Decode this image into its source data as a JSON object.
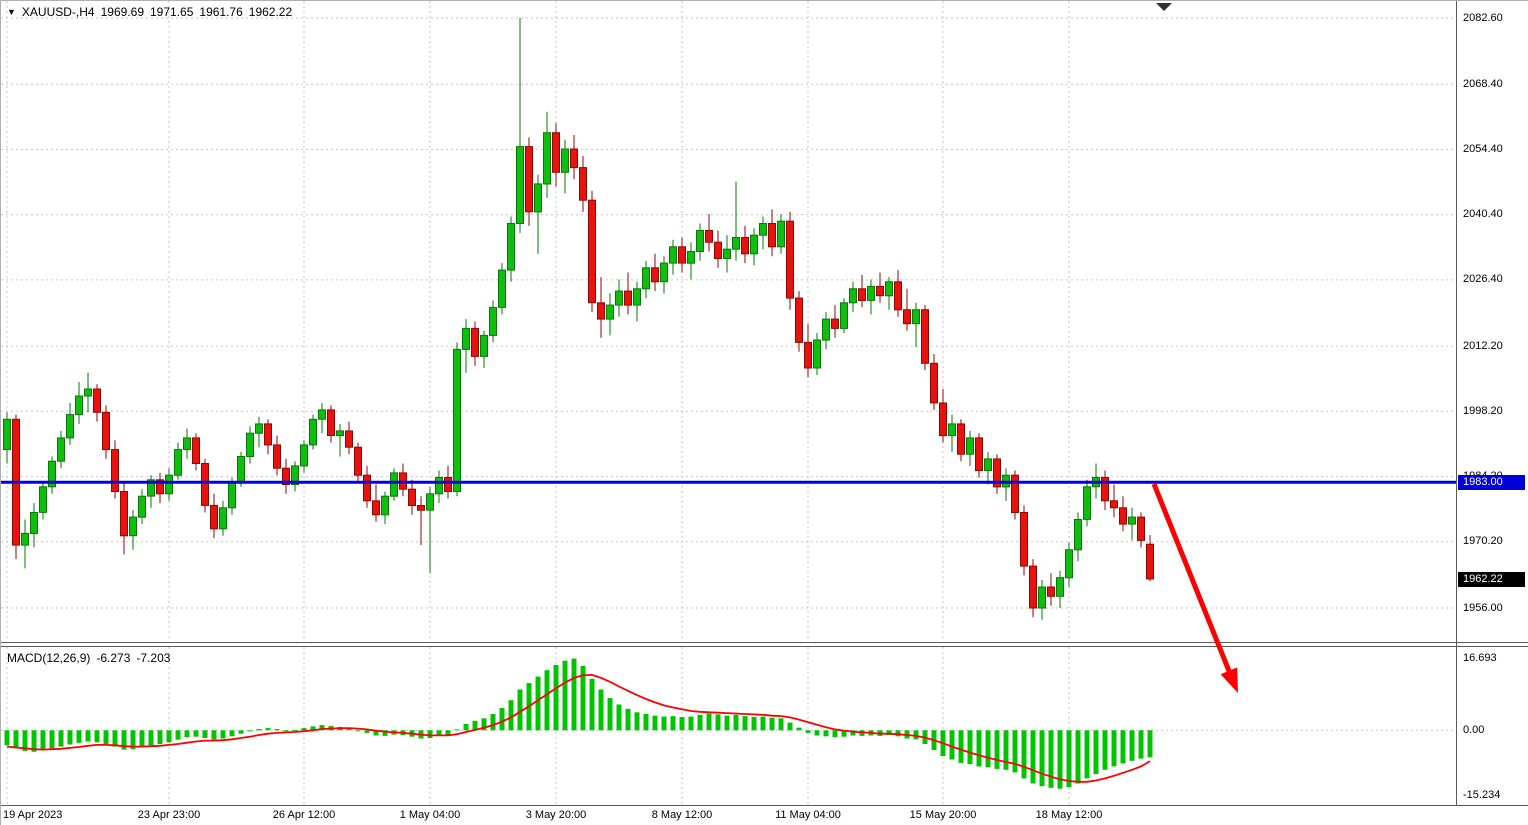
{
  "header": {
    "dropdown_icon": "▼",
    "symbol": "XAUUSD-,H4",
    "open": "1969.69",
    "high": "1971.65",
    "low": "1961.76",
    "close": "1962.22"
  },
  "indicator": {
    "name": "MACD(12,26,9)",
    "main_value": "-6.273",
    "signal_value": "-7.203"
  },
  "price_axis": {
    "labels": [
      {
        "label": "2082.60",
        "value": 2082.6
      },
      {
        "label": "2068.40",
        "value": 2068.4
      },
      {
        "label": "2054.40",
        "value": 2054.4
      },
      {
        "label": "2040.40",
        "value": 2040.4
      },
      {
        "label": "2026.40",
        "value": 2026.4
      },
      {
        "label": "2012.20",
        "value": 2012.2
      },
      {
        "label": "1998.20",
        "value": 1998.2
      },
      {
        "label": "1984.20",
        "value": 1984.2
      },
      {
        "label": "1970.20",
        "value": 1970.2
      },
      {
        "label": "1956.00",
        "value": 1956.0
      }
    ],
    "hline_tag": "1983.00",
    "last_tag": "1962.22"
  },
  "macd_axis": {
    "labels": [
      {
        "label": "16.693",
        "value": 16.693
      },
      {
        "label": "0.00",
        "value": 0
      },
      {
        "label": "-15.234",
        "value": -15.234
      }
    ]
  },
  "time_axis": {
    "labels": [
      {
        "label": "19 Apr 2023",
        "index": 0
      },
      {
        "label": "23 Apr 23:00",
        "index": 18
      },
      {
        "label": "26 Apr 12:00",
        "index": 33
      },
      {
        "label": "1 May 04:00",
        "index": 47
      },
      {
        "label": "3 May 20:00",
        "index": 61
      },
      {
        "label": "8 May 12:00",
        "index": 75
      },
      {
        "label": "11 May 04:00",
        "index": 89
      },
      {
        "label": "15 May 20:00",
        "index": 104
      },
      {
        "label": "18 May 12:00",
        "index": 118
      }
    ]
  },
  "chart_data": {
    "type": "candlestick",
    "symbol": "XAUUSD-",
    "timeframe": "H4",
    "title": "XAUUSD- H4 with MACD(12,26,9)",
    "current_candle": {
      "open": 1969.69,
      "high": 1971.65,
      "low": 1961.76,
      "close": 1962.22
    },
    "hline": {
      "price": 1983.0
    },
    "price_scale": {
      "top": 2086.25,
      "bottom": 1948.92
    },
    "macd_scale": {
      "top": 19.4,
      "bottom": -17.4
    },
    "grid_prices": [
      2082.6,
      2068.4,
      2054.4,
      2040.4,
      2026.4,
      2012.2,
      1998.2,
      1984.2,
      1970.2,
      1956.0
    ],
    "candles": [
      [
        1990.0,
        1998.0,
        1987.0,
        1996.5
      ],
      [
        1996.5,
        1997.5,
        1966.5,
        1969.5
      ],
      [
        1969.5,
        1975.0,
        1964.5,
        1972.0
      ],
      [
        1972.0,
        1978.5,
        1969.0,
        1976.5
      ],
      [
        1976.5,
        1983.0,
        1975.0,
        1982.0
      ],
      [
        1982.0,
        1988.5,
        1980.5,
        1987.5
      ],
      [
        1987.5,
        1994.0,
        1986.0,
        1992.5
      ],
      [
        1992.5,
        2000.0,
        1991.0,
        1997.5
      ],
      [
        1997.5,
        2004.5,
        1995.5,
        2001.5
      ],
      [
        2001.5,
        2006.5,
        1998.0,
        2003.0
      ],
      [
        2003.0,
        2004.0,
        1996.0,
        1998.0
      ],
      [
        1998.0,
        1999.5,
        1988.0,
        1990.0
      ],
      [
        1990.0,
        1992.0,
        1979.5,
        1981.0
      ],
      [
        1981.0,
        1983.0,
        1967.5,
        1971.5
      ],
      [
        1971.5,
        1977.0,
        1968.5,
        1975.5
      ],
      [
        1975.5,
        1981.5,
        1974.0,
        1980.0
      ],
      [
        1980.0,
        1984.5,
        1977.5,
        1983.5
      ],
      [
        1983.5,
        1985.0,
        1978.5,
        1980.5
      ],
      [
        1980.5,
        1986.0,
        1979.0,
        1984.5
      ],
      [
        1984.5,
        1991.5,
        1983.5,
        1990.0
      ],
      [
        1990.0,
        1994.5,
        1988.0,
        1992.5
      ],
      [
        1992.5,
        1993.5,
        1985.5,
        1987.0
      ],
      [
        1987.0,
        1988.0,
        1976.5,
        1978.0
      ],
      [
        1978.0,
        1980.5,
        1971.0,
        1973.0
      ],
      [
        1973.0,
        1979.0,
        1971.5,
        1977.5
      ],
      [
        1977.5,
        1984.0,
        1976.0,
        1983.0
      ],
      [
        1983.0,
        1989.5,
        1982.0,
        1988.5
      ],
      [
        1988.5,
        1995.0,
        1987.0,
        1993.5
      ],
      [
        1993.5,
        1997.0,
        1990.5,
        1995.5
      ],
      [
        1995.5,
        1996.5,
        1989.0,
        1991.0
      ],
      [
        1991.0,
        1993.0,
        1984.5,
        1986.0
      ],
      [
        1986.0,
        1988.0,
        1980.5,
        1982.5
      ],
      [
        1982.5,
        1987.5,
        1981.0,
        1986.5
      ],
      [
        1986.5,
        1992.0,
        1985.0,
        1991.0
      ],
      [
        1991.0,
        1997.5,
        1990.0,
        1996.5
      ],
      [
        1996.5,
        2000.0,
        1993.5,
        1998.5
      ],
      [
        1998.5,
        1999.5,
        1991.5,
        1993.0
      ],
      [
        1993.0,
        1995.5,
        1988.5,
        1994.0
      ],
      [
        1994.0,
        1996.0,
        1989.0,
        1990.5
      ],
      [
        1990.5,
        1991.5,
        1983.0,
        1984.5
      ],
      [
        1984.5,
        1986.5,
        1977.5,
        1979.0
      ],
      [
        1979.0,
        1982.5,
        1974.5,
        1976.0
      ],
      [
        1976.0,
        1981.0,
        1974.0,
        1980.0
      ],
      [
        1980.0,
        1986.0,
        1979.0,
        1985.0
      ],
      [
        1985.0,
        1987.0,
        1980.0,
        1981.5
      ],
      [
        1981.5,
        1983.5,
        1976.0,
        1978.0
      ],
      [
        1978.0,
        1980.0,
        1969.5,
        1977.0
      ],
      [
        1977.0,
        1982.0,
        1963.5,
        1980.5
      ],
      [
        1980.5,
        1985.5,
        1978.5,
        1984.0
      ],
      [
        1984.0,
        1986.5,
        1979.5,
        1981.0
      ],
      [
        1981.0,
        2013.0,
        1980.0,
        2011.5
      ],
      [
        2011.5,
        2018.0,
        2006.5,
        2016.0
      ],
      [
        2016.0,
        2017.5,
        2008.0,
        2010.0
      ],
      [
        2010.0,
        2015.5,
        2007.5,
        2014.5
      ],
      [
        2014.5,
        2022.0,
        2013.0,
        2020.5
      ],
      [
        2020.5,
        2030.0,
        2019.0,
        2028.5
      ],
      [
        2028.5,
        2040.0,
        2026.0,
        2038.5
      ],
      [
        2038.5,
        2082.6,
        2036.5,
        2055.0
      ],
      [
        2055.0,
        2057.0,
        2038.0,
        2041.0
      ],
      [
        2041.0,
        2049.0,
        2032.0,
        2047.0
      ],
      [
        2047.0,
        2062.5,
        2044.0,
        2058.0
      ],
      [
        2058.0,
        2060.0,
        2046.5,
        2049.5
      ],
      [
        2049.5,
        2056.5,
        2045.0,
        2054.5
      ],
      [
        2054.5,
        2057.5,
        2048.0,
        2050.5
      ],
      [
        2050.5,
        2053.0,
        2041.0,
        2043.5
      ],
      [
        2043.5,
        2045.5,
        2019.5,
        2021.5
      ],
      [
        2021.5,
        2027.0,
        2014.0,
        2018.0
      ],
      [
        2018.0,
        2023.5,
        2014.5,
        2021.0
      ],
      [
        2021.0,
        2026.5,
        2018.5,
        2024.0
      ],
      [
        2024.0,
        2028.0,
        2019.0,
        2021.0
      ],
      [
        2021.0,
        2026.0,
        2017.5,
        2024.5
      ],
      [
        2024.5,
        2030.5,
        2022.5,
        2029.0
      ],
      [
        2029.0,
        2032.0,
        2024.0,
        2026.0
      ],
      [
        2026.0,
        2031.5,
        2023.5,
        2030.0
      ],
      [
        2030.0,
        2035.0,
        2027.5,
        2033.5
      ],
      [
        2033.5,
        2035.5,
        2028.0,
        2030.0
      ],
      [
        2030.0,
        2034.5,
        2026.5,
        2032.5
      ],
      [
        2032.5,
        2038.5,
        2030.5,
        2037.0
      ],
      [
        2037.0,
        2040.5,
        2032.5,
        2034.5
      ],
      [
        2034.5,
        2037.0,
        2029.0,
        2031.0
      ],
      [
        2031.0,
        2036.0,
        2028.0,
        2033.0
      ],
      [
        2033.0,
        2047.5,
        2030.5,
        2035.5
      ],
      [
        2035.5,
        2038.0,
        2030.0,
        2032.0
      ],
      [
        2032.0,
        2037.5,
        2029.5,
        2036.0
      ],
      [
        2036.0,
        2040.0,
        2033.0,
        2038.5
      ],
      [
        2038.5,
        2041.5,
        2031.5,
        2033.5
      ],
      [
        2033.5,
        2040.5,
        2032.0,
        2039.0
      ],
      [
        2039.0,
        2041.0,
        2020.0,
        2022.5
      ],
      [
        2022.5,
        2024.0,
        2011.0,
        2013.0
      ],
      [
        2013.0,
        2017.0,
        2005.5,
        2007.5
      ],
      [
        2007.5,
        2015.0,
        2006.0,
        2013.5
      ],
      [
        2013.5,
        2019.5,
        2011.5,
        2018.0
      ],
      [
        2018.0,
        2021.0,
        2014.0,
        2016.0
      ],
      [
        2016.0,
        2022.5,
        2015.0,
        2021.5
      ],
      [
        2021.5,
        2026.0,
        2019.5,
        2024.5
      ],
      [
        2024.5,
        2027.5,
        2020.5,
        2022.0
      ],
      [
        2022.0,
        2026.5,
        2019.0,
        2025.0
      ],
      [
        2025.0,
        2028.0,
        2021.5,
        2023.0
      ],
      [
        2023.0,
        2027.0,
        2020.0,
        2026.0
      ],
      [
        2026.0,
        2028.5,
        2018.5,
        2020.0
      ],
      [
        2020.0,
        2024.5,
        2015.5,
        2017.0
      ],
      [
        2017.0,
        2021.5,
        2012.0,
        2020.0
      ],
      [
        2020.0,
        2021.0,
        2007.0,
        2008.5
      ],
      [
        2008.5,
        2010.5,
        1998.5,
        2000.0
      ],
      [
        2000.0,
        2003.0,
        1991.5,
        1993.0
      ],
      [
        1993.0,
        1997.5,
        1989.5,
        1995.5
      ],
      [
        1995.5,
        1996.5,
        1987.5,
        1989.0
      ],
      [
        1989.0,
        1994.0,
        1986.5,
        1992.5
      ],
      [
        1992.5,
        1993.5,
        1984.0,
        1985.5
      ],
      [
        1985.5,
        1989.5,
        1982.5,
        1988.0
      ],
      [
        1988.0,
        1989.0,
        1980.5,
        1982.0
      ],
      [
        1982.0,
        1986.0,
        1979.0,
        1984.5
      ],
      [
        1984.5,
        1985.5,
        1975.0,
        1976.5
      ],
      [
        1976.5,
        1978.0,
        1963.0,
        1965.0
      ],
      [
        1965.0,
        1966.5,
        1954.0,
        1956.0
      ],
      [
        1956.0,
        1962.0,
        1953.5,
        1960.5
      ],
      [
        1960.5,
        1963.5,
        1956.5,
        1958.5
      ],
      [
        1958.5,
        1964.0,
        1956.0,
        1962.5
      ],
      [
        1962.5,
        1970.0,
        1960.5,
        1968.5
      ],
      [
        1968.5,
        1976.5,
        1966.0,
        1975.0
      ],
      [
        1975.0,
        1983.5,
        1973.5,
        1982.0
      ],
      [
        1982.0,
        1987.0,
        1979.5,
        1984.0
      ],
      [
        1984.0,
        1985.5,
        1977.0,
        1979.0
      ],
      [
        1979.0,
        1982.5,
        1975.5,
        1977.5
      ],
      [
        1977.5,
        1980.0,
        1972.5,
        1974.0
      ],
      [
        1974.0,
        1977.5,
        1970.5,
        1975.5
      ],
      [
        1975.5,
        1976.5,
        1969.0,
        1970.5
      ],
      [
        1969.69,
        1971.65,
        1961.76,
        1962.22
      ]
    ],
    "macd_histogram": [
      -3.5,
      -4.2,
      -4.8,
      -5.0,
      -4.6,
      -4.2,
      -3.8,
      -3.3,
      -2.9,
      -2.6,
      -2.8,
      -3.2,
      -3.8,
      -4.5,
      -4.4,
      -4.0,
      -3.5,
      -3.2,
      -2.8,
      -2.2,
      -1.6,
      -1.5,
      -1.8,
      -2.2,
      -1.9,
      -1.4,
      -0.8,
      -0.2,
      0.3,
      0.5,
      0.3,
      0.0,
      0.1,
      0.5,
      0.9,
      1.2,
      1.0,
      0.8,
      0.5,
      0.0,
      -0.6,
      -1.2,
      -1.3,
      -1.0,
      -1.1,
      -1.5,
      -1.9,
      -1.8,
      -1.2,
      -1.1,
      0.2,
      1.5,
      2.2,
      2.8,
      3.8,
      5.2,
      7.0,
      9.5,
      11.0,
      12.5,
      14.0,
      15.2,
      16.2,
      16.693,
      15.0,
      12.0,
      9.5,
      7.5,
      6.0,
      5.0,
      4.2,
      3.8,
      3.4,
      3.2,
      3.3,
      3.1,
      3.2,
      3.6,
      3.9,
      3.7,
      3.4,
      3.6,
      3.3,
      3.1,
      3.2,
      2.9,
      2.8,
      1.8,
      0.6,
      -0.6,
      -1.2,
      -1.4,
      -1.6,
      -1.5,
      -1.2,
      -1.3,
      -1.2,
      -1.3,
      -1.1,
      -1.4,
      -1.9,
      -2.1,
      -3.2,
      -4.6,
      -6.0,
      -6.8,
      -7.6,
      -7.9,
      -8.4,
      -8.6,
      -9.0,
      -9.2,
      -9.8,
      -11.2,
      -12.4,
      -13.0,
      -13.4,
      -13.6,
      -13.2,
      -12.4,
      -11.2,
      -10.2,
      -9.2,
      -8.4,
      -7.7,
      -7.1,
      -6.6,
      -6.273
    ],
    "macd_signal": [
      -3.8,
      -4.0,
      -4.2,
      -4.4,
      -4.5,
      -4.4,
      -4.3,
      -4.1,
      -3.9,
      -3.6,
      -3.4,
      -3.4,
      -3.5,
      -3.7,
      -3.8,
      -3.8,
      -3.7,
      -3.6,
      -3.4,
      -3.2,
      -2.9,
      -2.6,
      -2.4,
      -2.4,
      -2.3,
      -2.1,
      -1.8,
      -1.5,
      -1.1,
      -0.8,
      -0.6,
      -0.5,
      -0.4,
      -0.2,
      0.0,
      0.3,
      0.4,
      0.5,
      0.5,
      0.4,
      0.2,
      -0.1,
      -0.3,
      -0.5,
      -0.6,
      -0.8,
      -1.0,
      -1.2,
      -1.2,
      -1.2,
      -0.9,
      -0.4,
      0.1,
      0.6,
      1.2,
      2.0,
      3.0,
      4.3,
      5.6,
      7.0,
      8.4,
      9.8,
      11.1,
      12.2,
      12.8,
      12.9,
      12.2,
      11.3,
      10.2,
      9.2,
      8.2,
      7.3,
      6.5,
      5.8,
      5.3,
      4.9,
      4.5,
      4.3,
      4.2,
      4.1,
      4.0,
      3.9,
      3.8,
      3.7,
      3.6,
      3.4,
      3.3,
      3.0,
      2.5,
      1.9,
      1.3,
      0.7,
      0.2,
      -0.1,
      -0.3,
      -0.5,
      -0.6,
      -0.8,
      -0.8,
      -0.9,
      -1.1,
      -1.3,
      -1.7,
      -2.3,
      -3.0,
      -3.8,
      -4.5,
      -5.2,
      -5.8,
      -6.4,
      -6.9,
      -7.4,
      -7.8,
      -8.5,
      -9.3,
      -10.1,
      -10.8,
      -11.4,
      -11.8,
      -12.0,
      -12.0,
      -11.7,
      -11.2,
      -10.6,
      -9.9,
      -9.2,
      -8.4,
      -7.203
    ],
    "colors": {
      "bull": "#0FBE0F",
      "bull_border": "#067806",
      "bear": "#E8130E",
      "bear_border": "#8F0703",
      "histogram": "#00C400",
      "signal": "#FF0000",
      "grid": "#C6C6C6",
      "hline": "#0000E0",
      "arrow": "#FF0000",
      "hline_tag_bg": "#0000D8",
      "last_tag_bg": "#000000"
    }
  }
}
